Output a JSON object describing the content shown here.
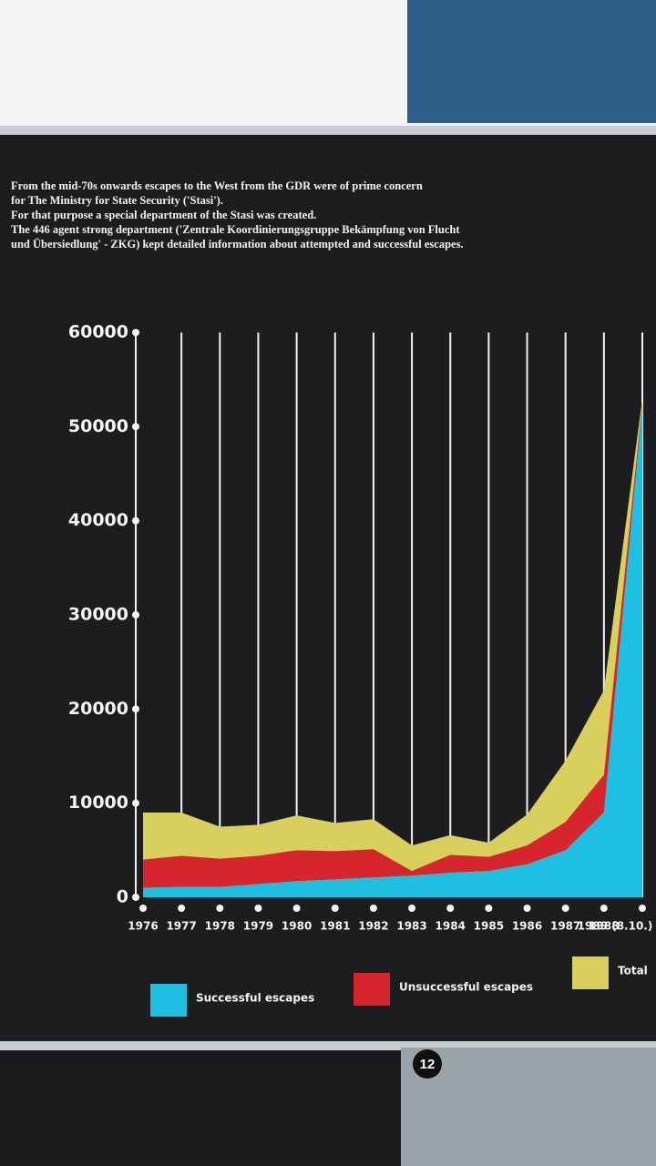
{
  "chart_data": {
    "type": "area",
    "subtitle": [
      "From the mid-70s onwards escapes to the West from the GDR were of prime concern",
      "for The Ministry for State Security ('Stasi').",
      "For that purpose a special department of the Stasi was created.",
      "The 446 agent strong department ('Zentrale Koordinierungsgruppe Bekämpfung von Flucht",
      "und Übersiedlung' - ZKG) kept detailed information about attempted and successful escapes."
    ],
    "categories": [
      "1976",
      "1977",
      "1978",
      "1979",
      "1980",
      "1981",
      "1982",
      "1983",
      "1984",
      "1985",
      "1986",
      "1987",
      "1988",
      "1989 (8.10.)"
    ],
    "series": [
      {
        "name": "Successful escapes",
        "color": "#1fbfe2",
        "values": [
          1000,
          1100,
          1100,
          1400,
          1700,
          1900,
          2100,
          2300,
          2600,
          2800,
          3500,
          5000,
          9000,
          52000
        ]
      },
      {
        "name": "Unsuccessful escapes",
        "color": "#d6252c",
        "values": [
          3000,
          3300,
          3000,
          3000,
          3300,
          3000,
          3000,
          500,
          1900,
          1500,
          2000,
          3000,
          4000,
          500
        ]
      },
      {
        "name": "Total",
        "color": "#d9cf5c",
        "values": [
          9000,
          9000,
          7500,
          7700,
          8700,
          7900,
          8300,
          5500,
          6600,
          5800,
          8800,
          14500,
          22000,
          53000
        ]
      }
    ],
    "ylim": [
      0,
      60000
    ],
    "yticks": [
      0,
      10000,
      20000,
      30000,
      40000,
      50000,
      60000
    ],
    "grid": true,
    "legend": "bottom"
  },
  "badge": "12"
}
